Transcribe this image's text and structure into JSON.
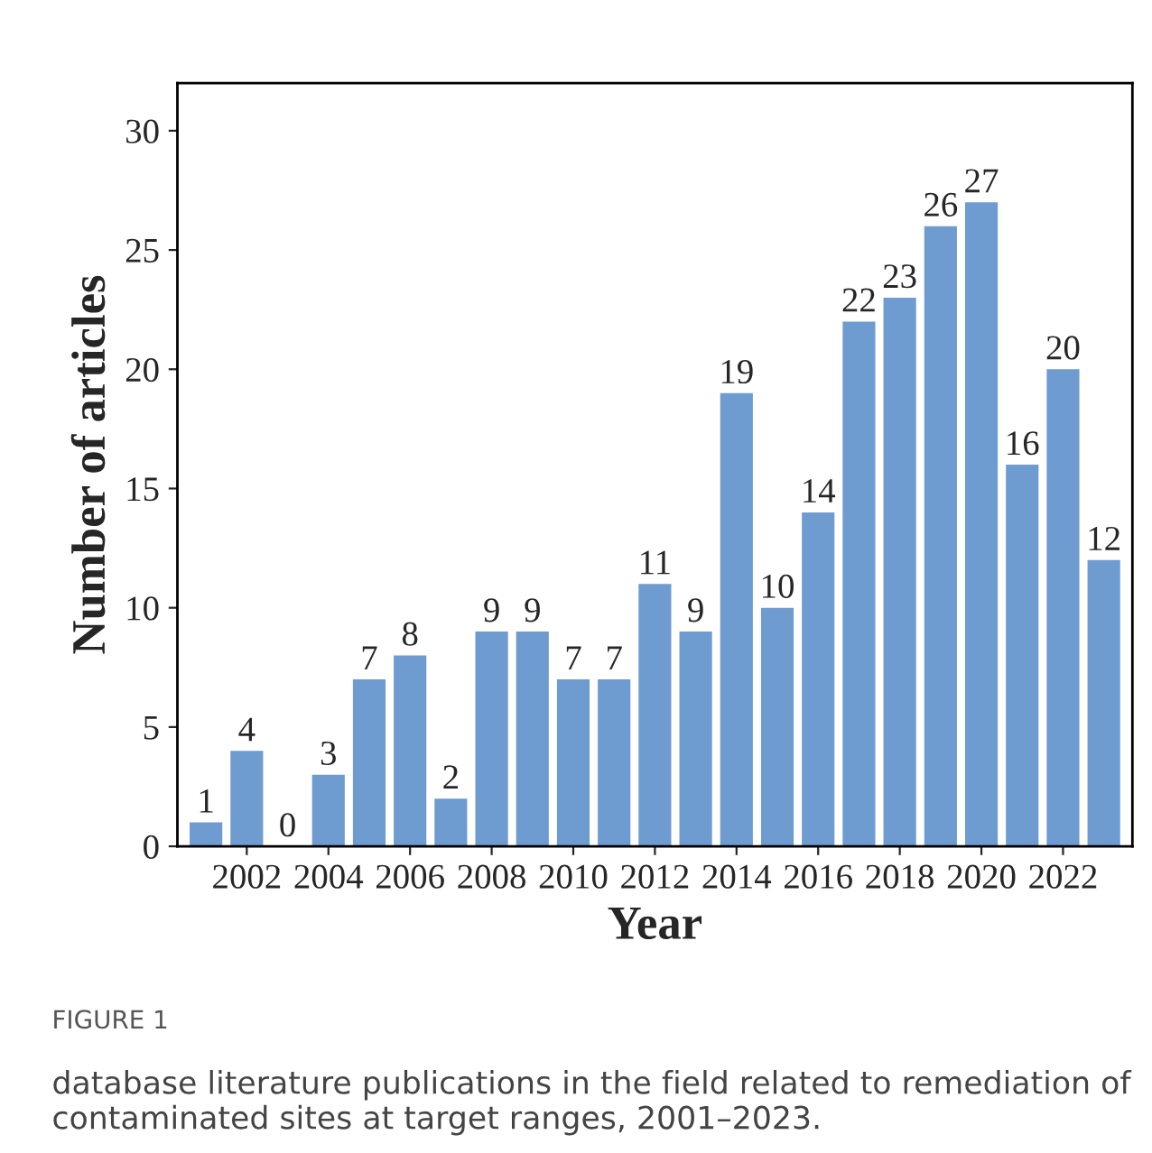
{
  "chart_data": {
    "type": "bar",
    "xlabel": "Year",
    "ylabel": "Number of articles",
    "categories": [
      null,
      "2002",
      null,
      "2004",
      null,
      "2006",
      null,
      "2008",
      null,
      "2010",
      null,
      "2012",
      null,
      "2014",
      null,
      "2016",
      null,
      "2018",
      null,
      "2020",
      null,
      "2022",
      null
    ],
    "values": [
      1,
      4,
      0,
      3,
      7,
      8,
      2,
      9,
      9,
      7,
      7,
      11,
      9,
      19,
      10,
      14,
      22,
      23,
      26,
      27,
      16,
      20,
      12
    ],
    "color": "#6e9bd0",
    "ylim": [
      0,
      32
    ],
    "yticks": [
      0,
      5,
      10,
      15,
      20,
      25,
      30
    ],
    "data_labels": true,
    "grid": false,
    "legend": false,
    "annotations": [
      "FIGURE 1",
      "database literature publications in the field related to remediation of contaminated sites at target ranges, 2001–2023."
    ]
  }
}
